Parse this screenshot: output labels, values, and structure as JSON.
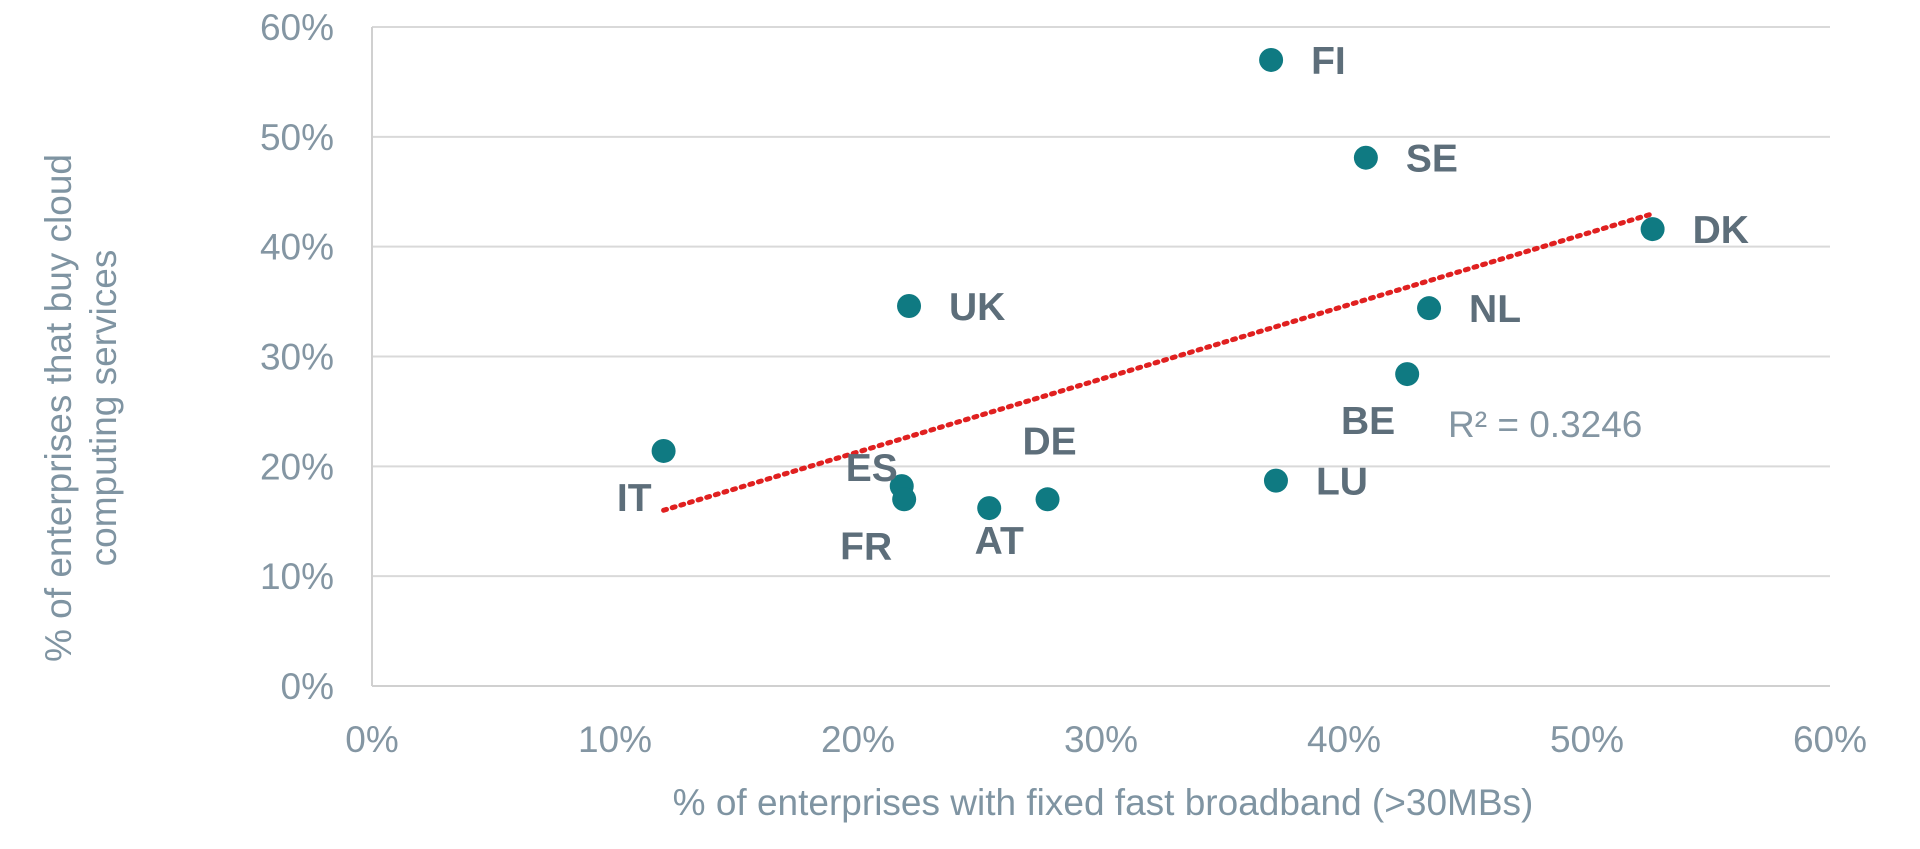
{
  "chart_data": {
    "type": "scatter",
    "title": "",
    "xlabel": "% of enterprises with  fixed fast broadband (>30MBs)",
    "ylabel_lines": [
      "% of enterprises that buy cloud",
      "computing services"
    ],
    "xlim": [
      0,
      0.6
    ],
    "ylim": [
      0,
      0.6
    ],
    "x_ticks": [
      0,
      0.1,
      0.2,
      0.3,
      0.4,
      0.5,
      0.6
    ],
    "y_ticks": [
      0,
      0.1,
      0.2,
      0.3,
      0.4,
      0.5,
      0.6
    ],
    "x_tick_labels": [
      "0%",
      "10%",
      "20%",
      "30%",
      "40%",
      "50%",
      "60%"
    ],
    "y_tick_labels": [
      "0%",
      "10%",
      "20%",
      "30%",
      "40%",
      "50%",
      "60%"
    ],
    "grid": "horizontal",
    "marker_color": "#0f7a82",
    "trendline": {
      "type": "linear",
      "style": "dotted",
      "color": "#e02020",
      "start": [
        0.12,
        0.16
      ],
      "end": [
        0.527,
        0.43
      ],
      "r2_label": "R² = 0.3246"
    },
    "points": [
      {
        "label": "FI",
        "x": 0.37,
        "y": 0.57,
        "label_side": "right"
      },
      {
        "label": "SE",
        "x": 0.409,
        "y": 0.481,
        "label_side": "right"
      },
      {
        "label": "DK",
        "x": 0.527,
        "y": 0.416,
        "label_side": "right"
      },
      {
        "label": "UK",
        "x": 0.221,
        "y": 0.346,
        "label_side": "right"
      },
      {
        "label": "NL",
        "x": 0.435,
        "y": 0.344,
        "label_side": "right"
      },
      {
        "label": "BE",
        "x": 0.426,
        "y": 0.284,
        "label_side": "below-left"
      },
      {
        "label": "IT",
        "x": 0.12,
        "y": 0.214,
        "label_side": "below-left"
      },
      {
        "label": "ES",
        "x": 0.218,
        "y": 0.182,
        "label_side": "above-left"
      },
      {
        "label": "FR",
        "x": 0.219,
        "y": 0.17,
        "label_side": "below-left"
      },
      {
        "label": "AT",
        "x": 0.254,
        "y": 0.162,
        "label_side": "below"
      },
      {
        "label": "DE",
        "x": 0.278,
        "y": 0.17,
        "label_side": "above"
      },
      {
        "label": "LU",
        "x": 0.372,
        "y": 0.187,
        "label_side": "right"
      }
    ]
  }
}
